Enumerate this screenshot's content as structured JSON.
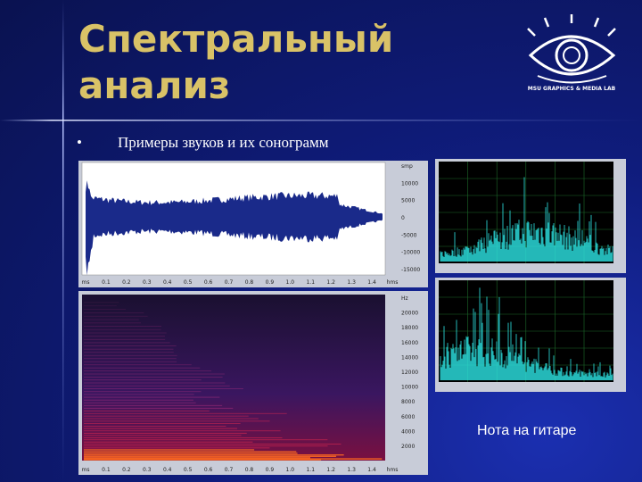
{
  "header": {
    "title_lines": [
      "Спектральный",
      "анализ"
    ],
    "logo_text": "MSU GRAPHICS & MEDIA LAB"
  },
  "bullets": [
    "Примеры звуков и их сонограмм"
  ],
  "waveform": {
    "x_labels": [
      "ms",
      "0.1",
      "0.2",
      "0.3",
      "0.4",
      "0.5",
      "0.6",
      "0.7",
      "0.8",
      "0.9",
      "1.0",
      "1.1",
      "1.2",
      "1.3",
      "1.4",
      "hms"
    ],
    "y_labels": [
      "smp",
      "10000",
      "5000",
      "0",
      "-5000",
      "-10000",
      "-15000"
    ]
  },
  "spectrogram": {
    "x_labels": [
      "ms",
      "0.1",
      "0.2",
      "0.3",
      "0.4",
      "0.5",
      "0.6",
      "0.7",
      "0.8",
      "0.9",
      "1.0",
      "1.1",
      "1.2",
      "1.3",
      "1.4",
      "hms"
    ],
    "y_labels": [
      "Hz",
      "20000",
      "18000",
      "16000",
      "14000",
      "12000",
      "10000",
      "8000",
      "6000",
      "4000",
      "2000"
    ]
  },
  "caption": "Нота на гитаре"
}
